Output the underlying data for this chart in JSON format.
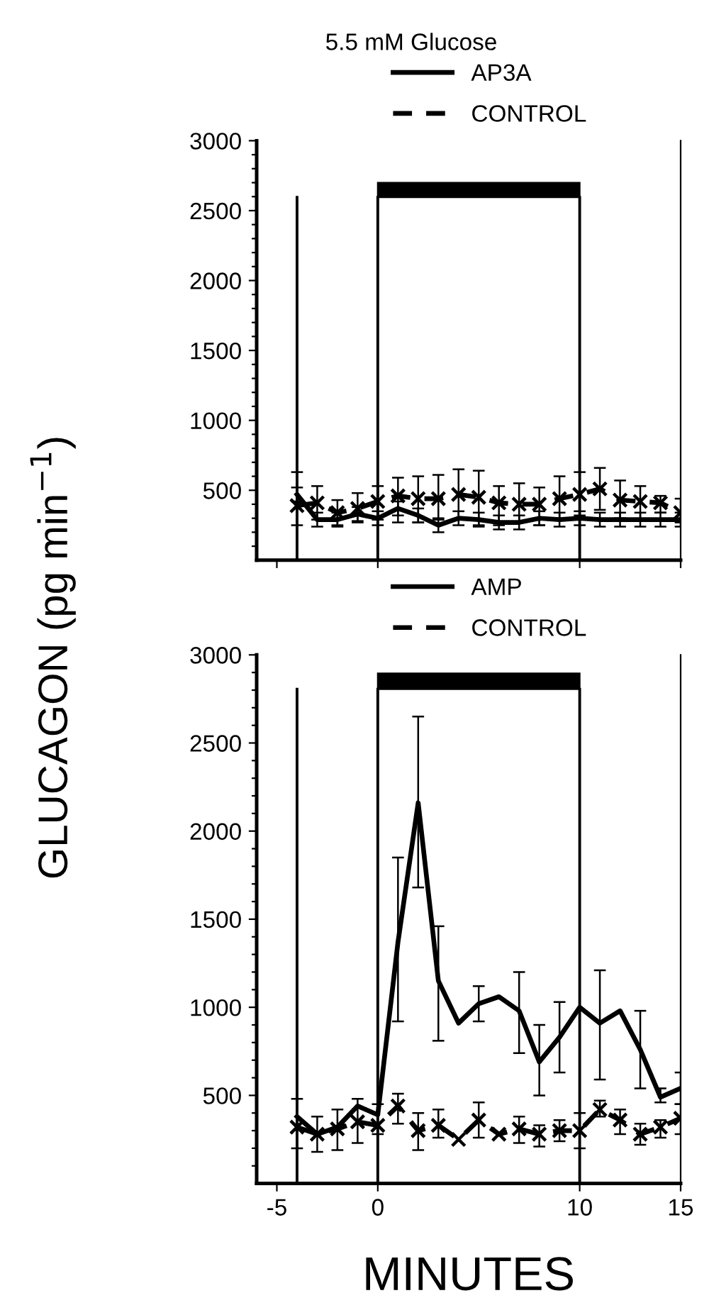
{
  "chart_data": [
    {
      "type": "line",
      "title": "5.5 mM Glucose",
      "ylabel": "GLUCAGON (pg min$^{−1}$)",
      "x": [
        -4,
        -3,
        -2,
        -1,
        0,
        1,
        2,
        3,
        4,
        5,
        6,
        7,
        8,
        9,
        10,
        11,
        12,
        13,
        14,
        15
      ],
      "xlim": [
        -6,
        15
      ],
      "xticks": [
        -5,
        0,
        10,
        15
      ],
      "ylim": [
        0,
        3000
      ],
      "yticks": [
        {
          "value": 100,
          "label": null
        },
        {
          "value": 200,
          "label": null
        },
        {
          "value": 300,
          "label": null
        },
        {
          "value": 400,
          "label": null
        },
        500,
        {
          "value": 600,
          "label": null
        },
        {
          "value": 700,
          "label": null
        },
        {
          "value": 800,
          "label": null
        },
        {
          "value": 900,
          "label": null
        },
        1000,
        {
          "value": 1100,
          "label": null
        },
        {
          "value": 1200,
          "label": null
        },
        {
          "value": 1300,
          "label": null
        },
        {
          "value": 1400,
          "label": null
        },
        1500,
        {
          "value": 1600,
          "label": null
        },
        {
          "value": 1700,
          "label": null
        },
        {
          "value": 1800,
          "label": null
        },
        {
          "value": 1900,
          "label": null
        },
        2000,
        {
          "value": 2100,
          "label": null
        },
        {
          "value": 2200,
          "label": null
        },
        {
          "value": 2300,
          "label": null
        },
        {
          "value": 2400,
          "label": null
        },
        2500,
        {
          "value": 2600,
          "label": null
        },
        {
          "value": 2700,
          "label": null
        },
        {
          "value": 2800,
          "label": null
        },
        {
          "value": 2900,
          "label": null
        },
        3000
      ],
      "tick_labels": "y",
      "legend": "top",
      "grid": false,
      "ref_lines": [
        {
          "axis": "x",
          "value": -4,
          "color": "#000000"
        },
        {
          "axis": "x",
          "value": 0,
          "color": "#000000"
        },
        {
          "axis": "x",
          "value": 10,
          "color": "#000000"
        }
      ],
      "series": [
        {
          "name": "AP3A",
          "color": "#000000",
          "line_style": "solid",
          "marker": "none",
          "values": [
            470,
            290,
            290,
            330,
            300,
            370,
            320,
            250,
            300,
            290,
            270,
            270,
            300,
            290,
            300,
            290,
            290,
            290,
            290,
            290
          ],
          "errors": [
            50,
            50,
            50,
            50,
            50,
            50,
            50,
            50,
            50,
            50,
            50,
            50,
            50,
            50,
            50,
            50,
            50,
            50,
            50,
            50
          ]
        },
        {
          "name": "CONTROL",
          "color": "#000000",
          "line_style": "dashed",
          "marker": "cross",
          "values": [
            390,
            410,
            340,
            370,
            420,
            460,
            440,
            440,
            470,
            450,
            410,
            400,
            400,
            440,
            470,
            510,
            430,
            420,
            410,
            340
          ],
          "errors": [
            [
              250,
              630
            ],
            [
              290,
              530
            ],
            [
              250,
              430
            ],
            [
              270,
              480
            ],
            [
              290,
              530
            ],
            [
              270,
              590
            ],
            [
              270,
              600
            ],
            [
              290,
              610
            ],
            [
              290,
              650
            ],
            [
              250,
              640
            ],
            [
              250,
              530
            ],
            [
              270,
              550
            ],
            [
              250,
              520
            ],
            [
              290,
              600
            ],
            [
              320,
              630
            ],
            [
              360,
              660
            ],
            [
              300,
              570
            ],
            [
              290,
              530
            ],
            [
              340,
              460
            ],
            [
              270,
              440
            ]
          ]
        }
      ]
    },
    {
      "type": "line",
      "xlabel": "MINUTES",
      "x": [
        -4,
        -3,
        -2,
        -1,
        0,
        1,
        2,
        3,
        4,
        5,
        6,
        7,
        8,
        9,
        10,
        11,
        12,
        13,
        14,
        15
      ],
      "xlim": [
        -6,
        15
      ],
      "xticks": [
        -5,
        0,
        10,
        15
      ],
      "ylim": [
        0,
        3000
      ],
      "yticks": [
        {
          "value": 100,
          "label": null
        },
        {
          "value": 200,
          "label": null
        },
        {
          "value": 300,
          "label": null
        },
        {
          "value": 400,
          "label": null
        },
        500,
        {
          "value": 600,
          "label": null
        },
        {
          "value": 700,
          "label": null
        },
        {
          "value": 800,
          "label": null
        },
        {
          "value": 900,
          "label": null
        },
        1000,
        {
          "value": 1100,
          "label": null
        },
        {
          "value": 1200,
          "label": null
        },
        {
          "value": 1300,
          "label": null
        },
        {
          "value": 1400,
          "label": null
        },
        1500,
        {
          "value": 1600,
          "label": null
        },
        {
          "value": 1700,
          "label": null
        },
        {
          "value": 1800,
          "label": null
        },
        {
          "value": 1900,
          "label": null
        },
        2000,
        {
          "value": 2100,
          "label": null
        },
        {
          "value": 2200,
          "label": null
        },
        {
          "value": 2300,
          "label": null
        },
        {
          "value": 2400,
          "label": null
        },
        2500,
        {
          "value": 2600,
          "label": null
        },
        {
          "value": 2700,
          "label": null
        },
        {
          "value": 2800,
          "label": null
        },
        {
          "value": 2900,
          "label": null
        },
        3000
      ],
      "legend": "top",
      "grid": false,
      "ref_lines": [
        {
          "axis": "x",
          "value": -4,
          "color": "#000000"
        },
        {
          "axis": "x",
          "value": 0,
          "color": "#000000"
        },
        {
          "axis": "x",
          "value": 10,
          "color": "#000000"
        }
      ],
      "series": [
        {
          "name": "AMP",
          "color": "#000000",
          "line_style": "solid",
          "marker": "none",
          "values": [
            380,
            280,
            320,
            440,
            390,
            1370,
            2160,
            1150,
            910,
            1020,
            1060,
            980,
            690,
            830,
            1000,
            910,
            980,
            760,
            490,
            540
          ],
          "errors": [
            null,
            null,
            null,
            null,
            null,
            [
              920,
              1850
            ],
            [
              1680,
              2650
            ],
            [
              810,
              1460
            ],
            null,
            [
              920,
              1120
            ],
            null,
            [
              740,
              1200
            ],
            [
              500,
              900
            ],
            [
              630,
              1030
            ],
            null,
            [
              590,
              1210
            ],
            null,
            [
              540,
              980
            ],
            [
              460,
              540
            ],
            [
              450,
              630
            ]
          ]
        },
        {
          "name": "CONTROL",
          "color": "#000000",
          "line_style": "dashed",
          "marker": "cross",
          "values": [
            320,
            280,
            310,
            350,
            330,
            440,
            300,
            330,
            250,
            360,
            280,
            310,
            280,
            300,
            300,
            420,
            360,
            280,
            320,
            370
          ],
          "errors": [
            [
              200,
              480
            ],
            [
              180,
              380
            ],
            [
              190,
              420
            ],
            [
              230,
              480
            ],
            [
              280,
              450
            ],
            [
              340,
              510
            ],
            [
              190,
              400
            ],
            [
              260,
              420
            ],
            null,
            [
              260,
              460
            ],
            null,
            [
              230,
              380
            ],
            [
              210,
              330
            ],
            [
              240,
              360
            ],
            [
              200,
              400
            ],
            [
              380,
              470
            ],
            [
              280,
              420
            ],
            [
              220,
              340
            ],
            [
              260,
              360
            ],
            [
              280,
              450
            ]
          ]
        }
      ]
    }
  ]
}
